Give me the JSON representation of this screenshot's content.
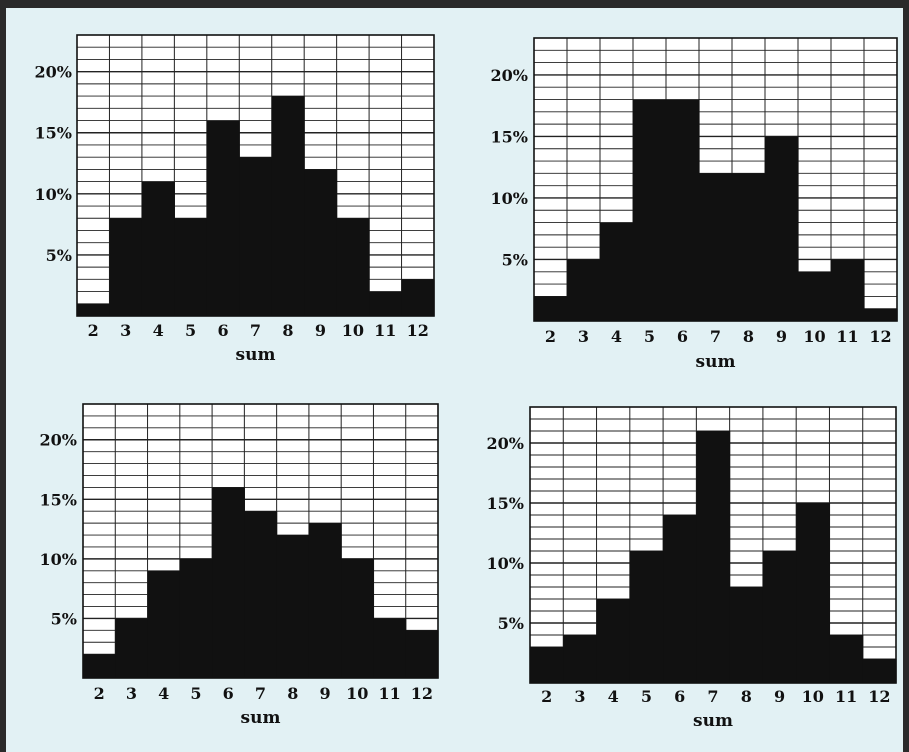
{
  "chart_data": [
    {
      "type": "bar",
      "categories": [
        "2",
        "3",
        "4",
        "5",
        "6",
        "7",
        "8",
        "9",
        "10",
        "11",
        "12"
      ],
      "values": [
        1,
        8,
        11,
        8,
        16,
        13,
        18,
        12,
        8,
        2,
        3
      ],
      "xlabel": "sum",
      "ylabel": "",
      "yticks": [
        "5%",
        "10%",
        "15%",
        "20%"
      ],
      "ylim": [
        0,
        23
      ],
      "grid": true
    },
    {
      "type": "bar",
      "categories": [
        "2",
        "3",
        "4",
        "5",
        "6",
        "7",
        "8",
        "9",
        "10",
        "11",
        "12"
      ],
      "values": [
        2,
        5,
        8,
        18,
        18,
        12,
        12,
        15,
        4,
        5,
        1
      ],
      "xlabel": "sum",
      "ylabel": "",
      "yticks": [
        "5%",
        "10%",
        "15%",
        "20%"
      ],
      "ylim": [
        0,
        23
      ],
      "grid": true
    },
    {
      "type": "bar",
      "categories": [
        "2",
        "3",
        "4",
        "5",
        "6",
        "7",
        "8",
        "9",
        "10",
        "11",
        "12"
      ],
      "values": [
        2,
        5,
        9,
        10,
        16,
        14,
        12,
        13,
        10,
        5,
        4
      ],
      "xlabel": "sum",
      "ylabel": "",
      "yticks": [
        "5%",
        "10%",
        "15%",
        "20%"
      ],
      "ylim": [
        0,
        23
      ],
      "grid": true
    },
    {
      "type": "bar",
      "categories": [
        "2",
        "3",
        "4",
        "5",
        "6",
        "7",
        "8",
        "9",
        "10",
        "11",
        "12"
      ],
      "values": [
        3,
        4,
        7,
        11,
        14,
        21,
        8,
        11,
        15,
        4,
        2
      ],
      "xlabel": "sum",
      "ylabel": "",
      "yticks": [
        "5%",
        "10%",
        "15%",
        "20%"
      ],
      "ylim": [
        0,
        23
      ],
      "grid": true
    }
  ]
}
